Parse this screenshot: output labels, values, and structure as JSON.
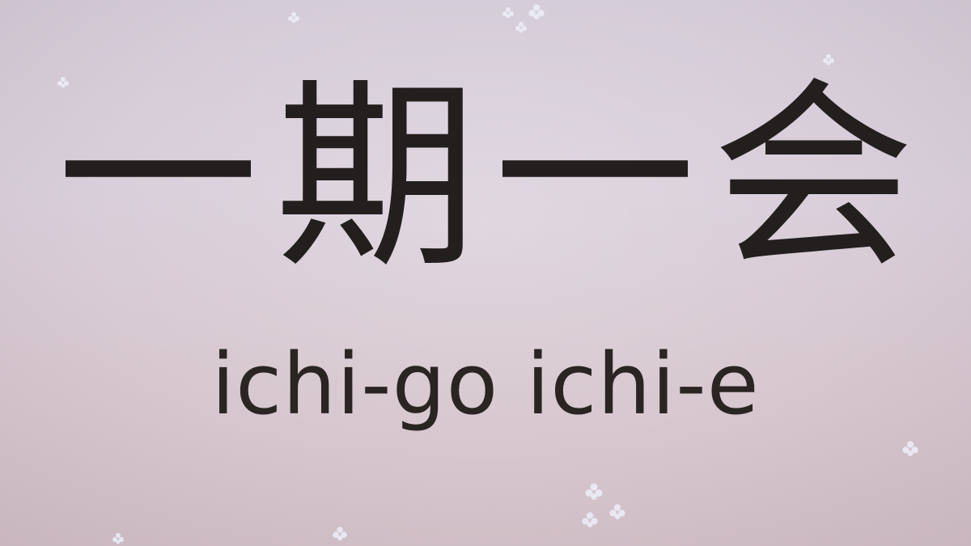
{
  "slide": {
    "kanji": [
      "一",
      "期",
      "一",
      "会"
    ],
    "romaji": "ichi-go ichi-e"
  },
  "decorations": {
    "icon": "sakura-petal-icon",
    "color": "#eef0fa"
  }
}
